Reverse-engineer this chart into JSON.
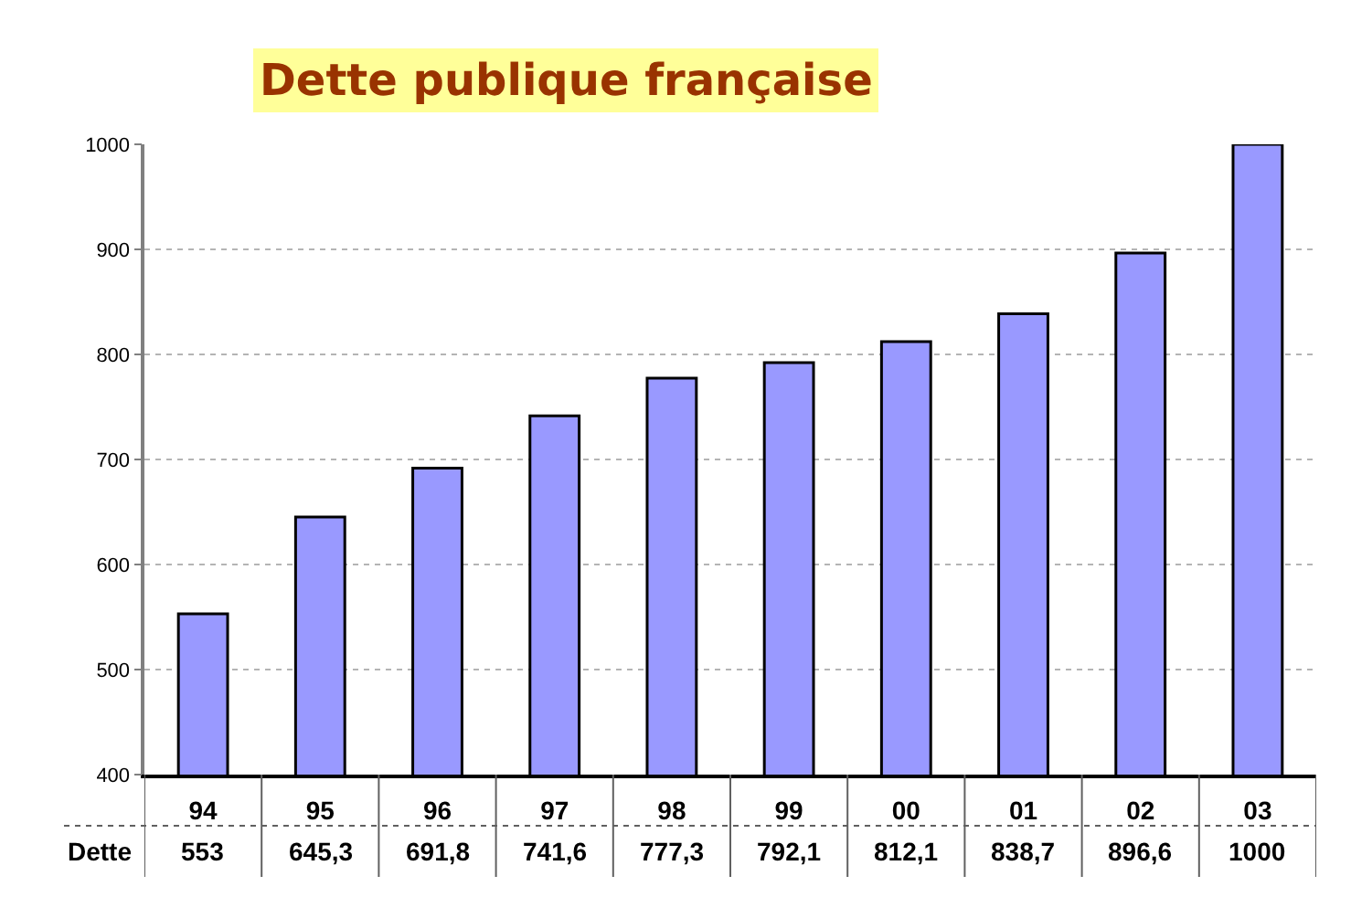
{
  "chart_data": {
    "type": "bar",
    "title": "Dette publique française",
    "categories": [
      "94",
      "95",
      "96",
      "97",
      "98",
      "99",
      "00",
      "01",
      "02",
      "03"
    ],
    "series": [
      {
        "name": "Dette",
        "color": "#9999ff",
        "values": [
          553,
          645.3,
          691.8,
          741.6,
          777.3,
          792.1,
          812.1,
          838.7,
          896.6,
          1000
        ],
        "value_labels": [
          "553",
          "645,3",
          "691,8",
          "741,6",
          "777,3",
          "792,1",
          "812,1",
          "838,7",
          "896,6",
          "1000"
        ]
      }
    ],
    "ylim": [
      400,
      1000
    ],
    "yticks": [
      400,
      500,
      600,
      700,
      800,
      900,
      1000
    ],
    "grid": "y"
  }
}
